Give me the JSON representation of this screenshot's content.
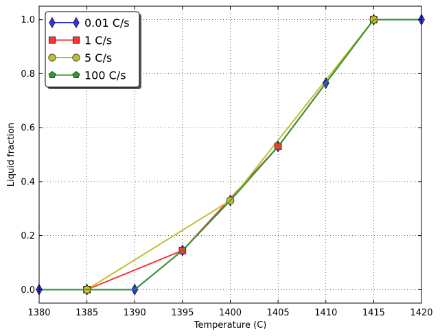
{
  "chart_data": {
    "type": "line",
    "title": "",
    "xlabel": "Temperature (C)",
    "ylabel": "Liquid fraction",
    "xlim": [
      1380,
      1420
    ],
    "ylim": [
      -0.05,
      1.05
    ],
    "xticks": [
      1380,
      1385,
      1390,
      1395,
      1400,
      1405,
      1410,
      1415,
      1420
    ],
    "yticks": [
      0.0,
      0.2,
      0.4,
      0.6,
      0.8,
      1.0
    ],
    "ytick_labels": [
      "0.0",
      "0.2",
      "0.4",
      "0.6",
      "0.8",
      "1.0"
    ],
    "grid": true,
    "legend_position": "top-left",
    "series": [
      {
        "name": "0.01 C/s",
        "color": "#3333dd",
        "marker": "diamond",
        "x": [
          1380,
          1385,
          1390,
          1395,
          1400,
          1405,
          1410,
          1415,
          1420
        ],
        "y": [
          0.0,
          0.0,
          0.0,
          0.145,
          0.33,
          0.53,
          0.765,
          1.0,
          1.0
        ]
      },
      {
        "name": "1 C/s",
        "color": "#ff3333",
        "marker": "square",
        "x": [
          1385,
          1395,
          1405,
          1415
        ],
        "y": [
          0.0,
          0.145,
          0.53,
          1.0
        ]
      },
      {
        "name": "5 C/s",
        "color": "#bfbf33",
        "marker": "circle",
        "x": [
          1385,
          1400,
          1415
        ],
        "y": [
          0.0,
          0.33,
          1.0
        ]
      },
      {
        "name": "100 C/s",
        "color": "#339933",
        "marker": "pentagon",
        "x": [
          1380,
          1385,
          1390,
          1395,
          1400,
          1405,
          1410,
          1415,
          1420
        ],
        "y": [
          0.0,
          0.0,
          0.0,
          0.145,
          0.33,
          0.53,
          0.765,
          1.0,
          1.0
        ],
        "show_markers": false
      }
    ]
  }
}
